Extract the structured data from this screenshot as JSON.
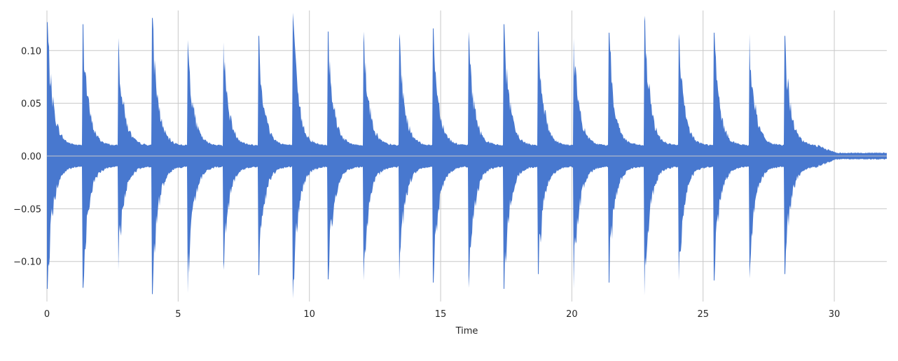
{
  "chart_data": {
    "type": "line",
    "kind": "audio waveform",
    "title": "",
    "xlabel": "Time",
    "ylabel": "",
    "xlim": [
      0,
      32.0
    ],
    "ylim": [
      -0.138,
      0.138
    ],
    "x_ticks": [
      0,
      5,
      10,
      15,
      20,
      25,
      30
    ],
    "y_ticks": [
      0.1,
      0.05,
      0.0,
      -0.05,
      -0.1
    ],
    "x_tick_labels": [
      "0",
      "5",
      "10",
      "15",
      "20",
      "25",
      "30"
    ],
    "y_tick_labels": [
      "0.10",
      "0.05",
      "0.00",
      "−0.05",
      "−0.10"
    ],
    "grid": true,
    "legend": "none",
    "series": [
      {
        "color": "#4878cf",
        "onsets": [
          0.0,
          1.35,
          2.7,
          4.0,
          5.35,
          6.7,
          8.05,
          9.35,
          10.7,
          12.05,
          13.4,
          14.7,
          16.05,
          17.4,
          18.7,
          20.05,
          21.4,
          22.75,
          24.05,
          25.4,
          26.75,
          28.1
        ],
        "peak_positive": [
          0.127,
          0.125,
          0.112,
          0.131,
          0.11,
          0.108,
          0.114,
          0.136,
          0.118,
          0.118,
          0.116,
          0.121,
          0.118,
          0.125,
          0.118,
          0.112,
          0.117,
          0.133,
          0.116,
          0.117,
          0.116,
          0.114
        ],
        "peak_negative": [
          -0.126,
          -0.125,
          -0.108,
          -0.131,
          -0.13,
          -0.108,
          -0.113,
          -0.135,
          -0.117,
          -0.118,
          -0.118,
          -0.12,
          -0.125,
          -0.126,
          -0.112,
          -0.126,
          -0.12,
          -0.132,
          -0.118,
          -0.118,
          -0.116,
          -0.112
        ],
        "sustain_level": 0.01,
        "tail_start": 29.3,
        "tail_end": 32.0,
        "tail_level": 0.003
      }
    ]
  }
}
